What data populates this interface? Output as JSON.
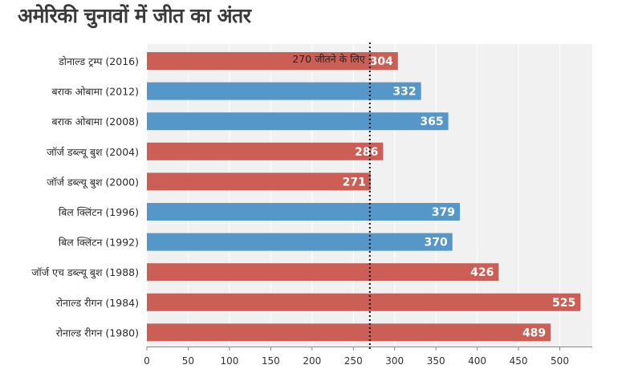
{
  "chart_data": {
    "type": "bar",
    "orientation": "horizontal",
    "title": "अमेरिकी चुनावों में जीत का अंतर",
    "categories": [
      "डोनाल्ड ट्रम्प (2016)",
      "बराक ओबामा (2012)",
      "बराक ओबामा (2008)",
      "जॉर्ज डब्ल्यू बुश (2004)",
      "जॉर्ज डब्ल्यू बुश (2000)",
      "बिल क्लिंटन (1996)",
      "बिल क्लिंटन (1992)",
      "जॉर्ज एच डब्ल्यू बुश (1988)",
      "रोनाल्ड रीगन (1984)",
      "रोनाल्ड रीगन (1980)"
    ],
    "values": [
      304,
      332,
      365,
      286,
      271,
      379,
      370,
      426,
      525,
      489
    ],
    "parties": [
      "red",
      "blue",
      "blue",
      "red",
      "red",
      "blue",
      "blue",
      "red",
      "red",
      "red"
    ],
    "colors": {
      "red": "#cc5f55",
      "blue": "#5597c9",
      "plot_bg": "#f1f1f1",
      "grid": "#ffffff",
      "reference": "#111111"
    },
    "xlim": [
      0,
      540
    ],
    "xticks": [
      0,
      50,
      100,
      150,
      200,
      250,
      300,
      350,
      400,
      450,
      500
    ],
    "reference_line": {
      "value": 270,
      "label": "270 जीतने के लिए"
    },
    "grid": true,
    "legend": "none",
    "xlabel": "",
    "ylabel": ""
  }
}
